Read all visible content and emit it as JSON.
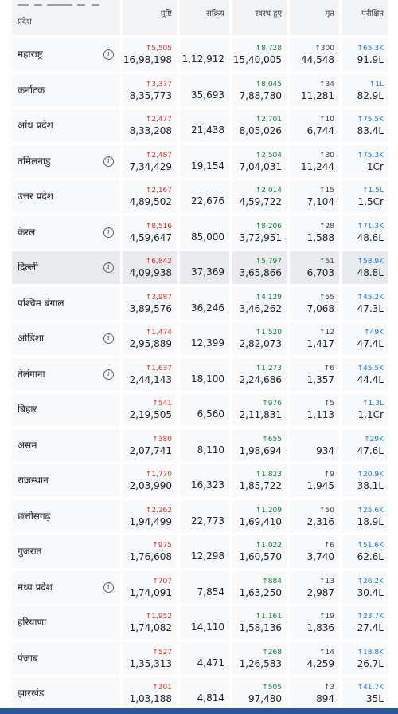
{
  "header": {
    "state_label": "प्रदेश",
    "confirmed_label": "पुष्टि",
    "active_label": "सक्रिय",
    "recovered_label": "स्वस्थ हुए",
    "deaths_label": "मृत",
    "tested_label": "परीक्षित"
  },
  "colors": {
    "confirmed_delta": "#d93025",
    "recovered_delta": "#188038",
    "tested_delta": "#1a73e8",
    "header_bg": "#f1f3f4",
    "cell_bg": "#f8f9fa",
    "selected_cell_bg": "#e8eaed",
    "footer_bar": "#2b579a"
  },
  "info_icon": "info-circle-icon",
  "info_symbol": "i",
  "rows": [
    {
      "state": "महाराष्ट्र",
      "info": true,
      "confirmed_delta": "↑5,505",
      "confirmed": "16,98,198",
      "active": "1,12,912",
      "recovered_delta": "↑8,728",
      "recovered": "15,40,005",
      "deaths_delta": "↑300",
      "deaths": "44,548",
      "tested_delta": "↑65.3K",
      "tested": "91.9L"
    },
    {
      "state": "कर्नाटक",
      "info": false,
      "confirmed_delta": "↑3,377",
      "confirmed": "8,35,773",
      "active": "35,693",
      "recovered_delta": "↑8,045",
      "recovered": "7,88,780",
      "deaths_delta": "↑34",
      "deaths": "11,281",
      "tested_delta": "↑1L",
      "tested": "82.9L"
    },
    {
      "state": "आंध्र प्रदेश",
      "info": false,
      "confirmed_delta": "↑2,477",
      "confirmed": "8,33,208",
      "active": "21,438",
      "recovered_delta": "↑2,701",
      "recovered": "8,05,026",
      "deaths_delta": "↑10",
      "deaths": "6,744",
      "tested_delta": "↑75.5K",
      "tested": "83.4L"
    },
    {
      "state": "तमिलनाडु",
      "info": true,
      "confirmed_delta": "↑2,487",
      "confirmed": "7,34,429",
      "active": "19,154",
      "recovered_delta": "↑2,504",
      "recovered": "7,04,031",
      "deaths_delta": "↑30",
      "deaths": "11,244",
      "tested_delta": "↑75.3K",
      "tested": "1Cr"
    },
    {
      "state": "उत्तर प्रदेश",
      "info": false,
      "confirmed_delta": "↑2,167",
      "confirmed": "4,89,502",
      "active": "22,676",
      "recovered_delta": "↑2,014",
      "recovered": "4,59,722",
      "deaths_delta": "↑15",
      "deaths": "7,104",
      "tested_delta": "↑1.5L",
      "tested": "1.5Cr"
    },
    {
      "state": "केरल",
      "info": true,
      "confirmed_delta": "↑8,516",
      "confirmed": "4,59,647",
      "active": "85,000",
      "recovered_delta": "↑8,206",
      "recovered": "3,72,951",
      "deaths_delta": "↑28",
      "deaths": "1,588",
      "tested_delta": "↑71.3K",
      "tested": "48.6L"
    },
    {
      "state": "दिल्ली",
      "info": true,
      "highlight": true,
      "confirmed_delta": "↑6,842",
      "confirmed": "4,09,938",
      "active": "37,369",
      "recovered_delta": "↑5,797",
      "recovered": "3,65,866",
      "deaths_delta": "↑51",
      "deaths": "6,703",
      "tested_delta": "↑58.9K",
      "tested": "48.8L"
    },
    {
      "state": "पश्चिम बंगाल",
      "info": false,
      "confirmed_delta": "↑3,987",
      "confirmed": "3,89,576",
      "active": "36,246",
      "recovered_delta": "↑4,129",
      "recovered": "3,46,262",
      "deaths_delta": "↑55",
      "deaths": "7,068",
      "tested_delta": "↑45.2K",
      "tested": "47.3L"
    },
    {
      "state": "ओडिशा",
      "info": true,
      "confirmed_delta": "↑1,474",
      "confirmed": "2,95,889",
      "active": "12,399",
      "recovered_delta": "↑1,520",
      "recovered": "2,82,073",
      "deaths_delta": "↑12",
      "deaths": "1,417",
      "tested_delta": "↑49K",
      "tested": "47.4L"
    },
    {
      "state": "तेलंगाना",
      "info": true,
      "confirmed_delta": "↑1,637",
      "confirmed": "2,44,143",
      "active": "18,100",
      "recovered_delta": "↑1,273",
      "recovered": "2,24,686",
      "deaths_delta": "↑6",
      "deaths": "1,357",
      "tested_delta": "↑45.5K",
      "tested": "44.4L"
    },
    {
      "state": "बिहार",
      "info": false,
      "confirmed_delta": "↑541",
      "confirmed": "2,19,505",
      "active": "6,560",
      "recovered_delta": "↑976",
      "recovered": "2,11,831",
      "deaths_delta": "↑5",
      "deaths": "1,113",
      "tested_delta": "↑1.3L",
      "tested": "1.1Cr"
    },
    {
      "state": "असम",
      "info": false,
      "confirmed_delta": "↑380",
      "confirmed": "2,07,741",
      "active": "8,110",
      "recovered_delta": "↑655",
      "recovered": "1,98,694",
      "deaths_delta": "",
      "deaths": "934",
      "tested_delta": "↑29K",
      "tested": "47.6L"
    },
    {
      "state": "राजस्थान",
      "info": false,
      "confirmed_delta": "↑1,770",
      "confirmed": "2,03,990",
      "active": "16,323",
      "recovered_delta": "↑1,823",
      "recovered": "1,85,722",
      "deaths_delta": "↑9",
      "deaths": "1,945",
      "tested_delta": "↑20.9K",
      "tested": "38.1L"
    },
    {
      "state": "छत्तीसगढ़",
      "info": false,
      "confirmed_delta": "↑2,262",
      "confirmed": "1,94,499",
      "active": "22,773",
      "recovered_delta": "↑1,209",
      "recovered": "1,69,410",
      "deaths_delta": "↑50",
      "deaths": "2,316",
      "tested_delta": "↑25.6K",
      "tested": "18.9L"
    },
    {
      "state": "गुजरात",
      "info": false,
      "confirmed_delta": "↑975",
      "confirmed": "1,76,608",
      "active": "12,298",
      "recovered_delta": "↑1,022",
      "recovered": "1,60,570",
      "deaths_delta": "↑6",
      "deaths": "3,740",
      "tested_delta": "↑51.6K",
      "tested": "62.6L"
    },
    {
      "state": "मध्य प्रदेश",
      "info": true,
      "confirmed_delta": "↑707",
      "confirmed": "1,74,091",
      "active": "7,854",
      "recovered_delta": "↑884",
      "recovered": "1,63,250",
      "deaths_delta": "↑13",
      "deaths": "2,987",
      "tested_delta": "↑26.2K",
      "tested": "30.4L"
    },
    {
      "state": "हरियाणा",
      "info": false,
      "confirmed_delta": "↑1,952",
      "confirmed": "1,74,082",
      "active": "14,110",
      "recovered_delta": "↑1,161",
      "recovered": "1,58,136",
      "deaths_delta": "↑19",
      "deaths": "1,836",
      "tested_delta": "↑23.7K",
      "tested": "27.4L"
    },
    {
      "state": "पंजाब",
      "info": false,
      "confirmed_delta": "↑527",
      "confirmed": "1,35,313",
      "active": "4,471",
      "recovered_delta": "↑268",
      "recovered": "1,26,583",
      "deaths_delta": "↑14",
      "deaths": "4,259",
      "tested_delta": "↑18.8K",
      "tested": "26.7L"
    },
    {
      "state": "झारखंड",
      "info": false,
      "confirmed_delta": "↑301",
      "confirmed": "1,03,188",
      "active": "4,814",
      "recovered_delta": "↑505",
      "recovered": "97,480",
      "deaths_delta": "↑3",
      "deaths": "894",
      "tested_delta": "↑41.7K",
      "tested": "35L"
    }
  ]
}
